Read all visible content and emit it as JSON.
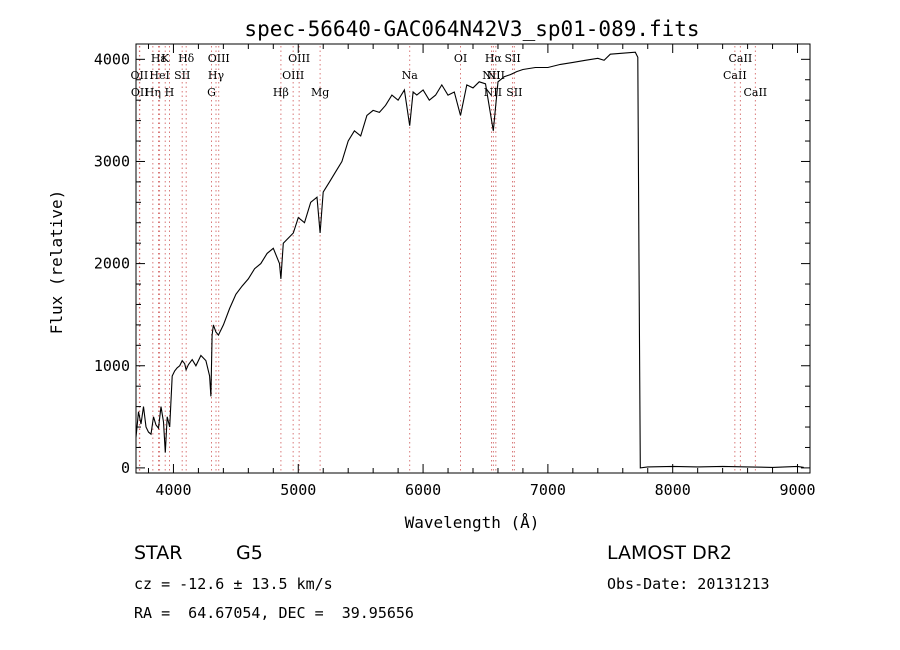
{
  "chart_data": {
    "type": "line",
    "title": "spec-56640-GAC064N42V3_sp01-089.fits",
    "xlabel": "Wavelength (Å)",
    "ylabel": "Flux (relative)",
    "xlim": [
      3700,
      9100
    ],
    "ylim": [
      -50,
      4150
    ],
    "xticks": [
      4000,
      5000,
      6000,
      7000,
      8000,
      9000
    ],
    "yticks": [
      0,
      1000,
      2000,
      3000,
      4000
    ],
    "grid": false,
    "series": [
      {
        "x": [
          3700,
          3720,
          3740,
          3760,
          3780,
          3800,
          3820,
          3840,
          3860,
          3880,
          3900,
          3920,
          3935,
          3950,
          3970,
          3990,
          4010,
          4030,
          4050,
          4070,
          4090,
          4101,
          4120,
          4150,
          4180,
          4220,
          4260,
          4290,
          4300,
          4310,
          4320,
          4340,
          4360,
          4400,
          4450,
          4500,
          4550,
          4600,
          4650,
          4700,
          4750,
          4800,
          4850,
          4861,
          4880,
          4920,
          4960,
          5000,
          5050,
          5100,
          5150,
          5175,
          5200,
          5250,
          5300,
          5350,
          5400,
          5450,
          5500,
          5550,
          5600,
          5650,
          5700,
          5750,
          5800,
          5850,
          5893,
          5920,
          5950,
          6000,
          6050,
          6100,
          6150,
          6200,
          6250,
          6300,
          6350,
          6400,
          6450,
          6500,
          6563,
          6600,
          6650,
          6700,
          6750,
          6800,
          6900,
          7000,
          7100,
          7200,
          7300,
          7400,
          7450,
          7500,
          7600,
          7700,
          7720,
          7730,
          7740,
          7800,
          8000,
          8200,
          8400,
          8600,
          8800,
          9000,
          9050
        ],
        "y": [
          300,
          550,
          430,
          600,
          400,
          350,
          330,
          500,
          420,
          390,
          600,
          450,
          150,
          500,
          400,
          900,
          950,
          980,
          1000,
          1050,
          1020,
          960,
          1010,
          1060,
          1000,
          1100,
          1050,
          900,
          700,
          1300,
          1400,
          1330,
          1300,
          1400,
          1560,
          1700,
          1780,
          1850,
          1950,
          2000,
          2100,
          2150,
          2000,
          1850,
          2200,
          2250,
          2300,
          2450,
          2400,
          2600,
          2650,
          2300,
          2700,
          2800,
          2900,
          3000,
          3200,
          3300,
          3250,
          3450,
          3500,
          3480,
          3550,
          3650,
          3600,
          3700,
          3350,
          3680,
          3650,
          3700,
          3600,
          3650,
          3750,
          3650,
          3680,
          3450,
          3750,
          3720,
          3780,
          3760,
          3300,
          3780,
          3830,
          3850,
          3880,
          3900,
          3920,
          3920,
          3950,
          3970,
          3990,
          4010,
          3990,
          4050,
          4060,
          4070,
          4020,
          2000,
          0,
          10,
          15,
          10,
          15,
          10,
          5,
          15,
          5
        ]
      }
    ],
    "spectral_lines": [
      {
        "label": "Hε",
        "x": 3880,
        "row": 0
      },
      {
        "label": "K",
        "x": 3934,
        "row": 0
      },
      {
        "label": "Hδ",
        "x": 4102,
        "row": 0
      },
      {
        "label": "OIII",
        "x": 4363,
        "row": 0
      },
      {
        "label": "OIII",
        "x": 5007,
        "row": 0
      },
      {
        "label": "OI",
        "x": 6300,
        "row": 0
      },
      {
        "label": "Hα",
        "x": 6563,
        "row": 0
      },
      {
        "label": "SII",
        "x": 6717,
        "row": 0
      },
      {
        "label": "CaII",
        "x": 8542,
        "row": 0
      },
      {
        "label": "OII",
        "x": 3727,
        "row": 1
      },
      {
        "label": "HeI",
        "x": 3889,
        "row": 1
      },
      {
        "label": "SII",
        "x": 4070,
        "row": 1
      },
      {
        "label": "Hγ",
        "x": 4341,
        "row": 1
      },
      {
        "label": "OIII",
        "x": 4959,
        "row": 1
      },
      {
        "label": "Na",
        "x": 5893,
        "row": 1
      },
      {
        "label": "NII",
        "x": 6548,
        "row": 1
      },
      {
        "label": "NII",
        "x": 6583,
        "row": 1
      },
      {
        "label": "CaII",
        "x": 8498,
        "row": 1
      },
      {
        "label": "OII",
        "x": 3730,
        "row": 2
      },
      {
        "label": "Hη",
        "x": 3835,
        "row": 2
      },
      {
        "label": "H",
        "x": 3968,
        "row": 2
      },
      {
        "label": "G",
        "x": 4305,
        "row": 2
      },
      {
        "label": "Hβ",
        "x": 4861,
        "row": 2
      },
      {
        "label": "Mg",
        "x": 5175,
        "row": 2
      },
      {
        "label": "NII",
        "x": 6560,
        "row": 2
      },
      {
        "label": "SII",
        "x": 6731,
        "row": 2
      },
      {
        "label": "CaII",
        "x": 8662,
        "row": 2
      }
    ]
  },
  "info": {
    "class_label": "STAR",
    "subclass": "G5",
    "survey": "LAMOST DR2",
    "redshift": "cz = -12.6 ± 13.5 km/s",
    "obs_date": "Obs-Date: 20131213",
    "coords": "RA =  64.67054, DEC =  39.95656"
  },
  "colors": {
    "spectrum": "#000000",
    "line_markers": "#d46a6a",
    "text": "#000000"
  }
}
